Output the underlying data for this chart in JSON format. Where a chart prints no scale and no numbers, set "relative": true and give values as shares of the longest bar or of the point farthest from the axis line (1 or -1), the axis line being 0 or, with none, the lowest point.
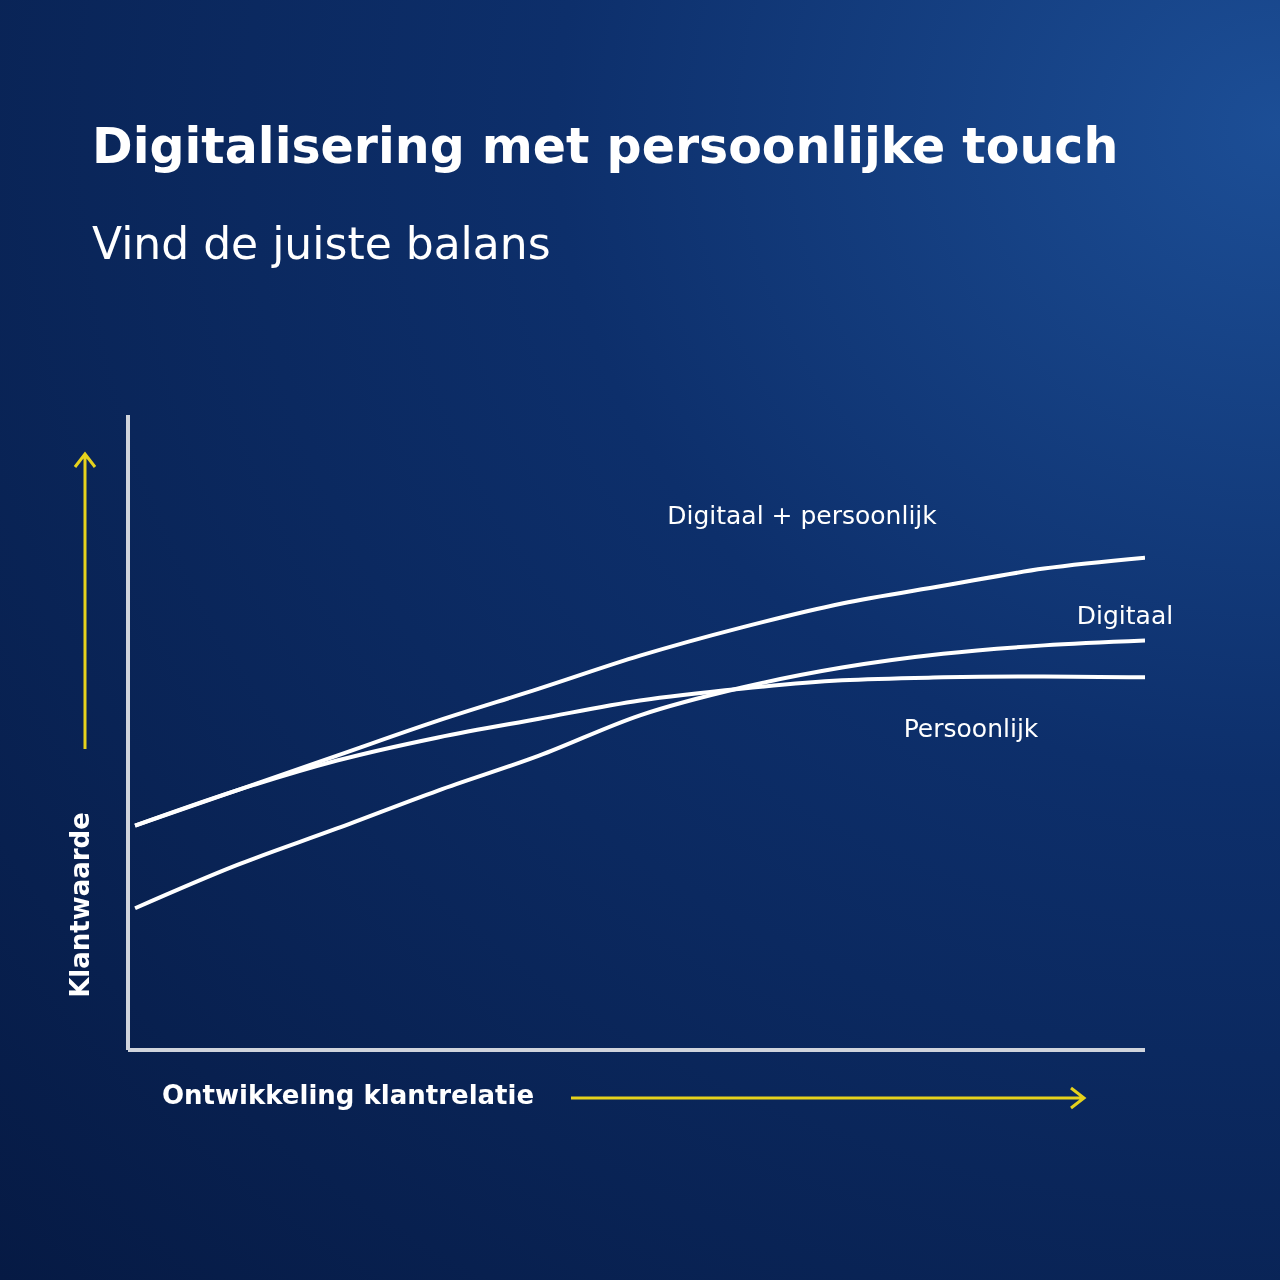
{
  "chart_data": {
    "type": "line",
    "title": "Digitalisering met persoonlijke touch",
    "subtitle": "Vind de juiste balans",
    "xlabel": "Ontwikkeling klantrelatie",
    "ylabel": "Klantwaarde",
    "relative": true,
    "categories": [
      null,
      null,
      null,
      null,
      null,
      null,
      null,
      null,
      null,
      null,
      null
    ],
    "marker": "none",
    "line_style": "solid",
    "legend": false,
    "grid": false,
    "series": [
      {
        "name": "Digitaal + persoonlijk",
        "color": "#ffffff",
        "values": [
          0.456,
          0.527,
          0.598,
          0.669,
          0.734,
          0.801,
          0.858,
          0.907,
          0.943,
          0.978,
          1
        ]
      },
      {
        "name": "Digitaal",
        "color": "#ffffff",
        "values": [
          0.288,
          0.375,
          0.45,
          0.527,
          0.598,
          0.68,
          0.736,
          0.777,
          0.805,
          0.822,
          0.832
        ]
      },
      {
        "name": "Persoonlijk",
        "color": "#ffffff",
        "values": [
          0.456,
          0.527,
          0.588,
          0.635,
          0.673,
          0.71,
          0.734,
          0.751,
          0.757,
          0.759,
          0.757
        ]
      }
    ]
  }
}
